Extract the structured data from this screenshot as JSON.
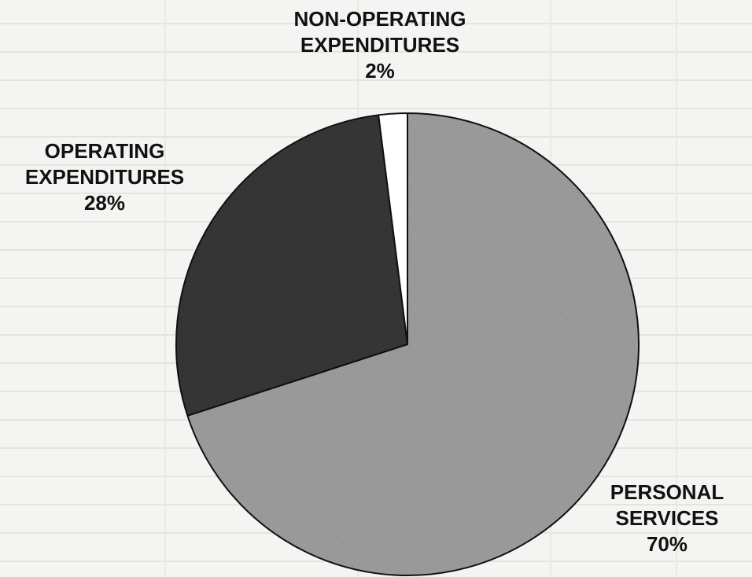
{
  "chart_data": {
    "type": "pie",
    "title": "",
    "slices": [
      {
        "label_lines": [
          "PERSONAL",
          "SERVICES"
        ],
        "pct_label": "70%",
        "value": 70,
        "color": "#a8a8a8"
      },
      {
        "label_lines": [
          "OPERATING",
          "EXPENDITURES"
        ],
        "pct_label": "28%",
        "value": 28,
        "color": "#3a3a3a"
      },
      {
        "label_lines": [
          "NON-OPERATING",
          "EXPENDITURES"
        ],
        "pct_label": "2%",
        "value": 2,
        "color": "#ffffff"
      }
    ],
    "legend": "none"
  }
}
